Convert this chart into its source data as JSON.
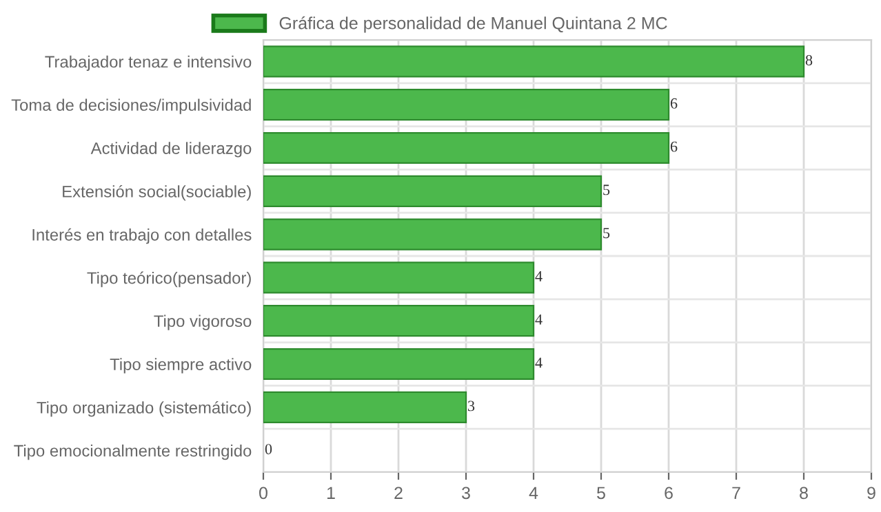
{
  "chart_data": {
    "type": "bar",
    "orientation": "horizontal",
    "categories": [
      "Trabajador tenaz e intensivo",
      "Toma de decisiones/impulsividad",
      "Actividad de liderazgo",
      "Extensión social(sociable)",
      "Interés en trabajo con detalles",
      "Tipo teórico(pensador)",
      "Tipo vigoroso",
      "Tipo siempre activo",
      "Tipo organizado (sistemático)",
      "Tipo emocionalmente restringido"
    ],
    "series": [
      {
        "name": "Gráfica de personalidad de Manuel Quintana 2 MC",
        "color": "#4cb84c",
        "values": [
          8,
          6,
          6,
          5,
          5,
          4,
          4,
          4,
          3,
          0
        ]
      }
    ],
    "xlim": [
      0,
      9
    ],
    "xticks": [
      0,
      1,
      2,
      3,
      4,
      5,
      6,
      7,
      8,
      9
    ],
    "grid": true,
    "legend": "top",
    "data_labels": true
  }
}
